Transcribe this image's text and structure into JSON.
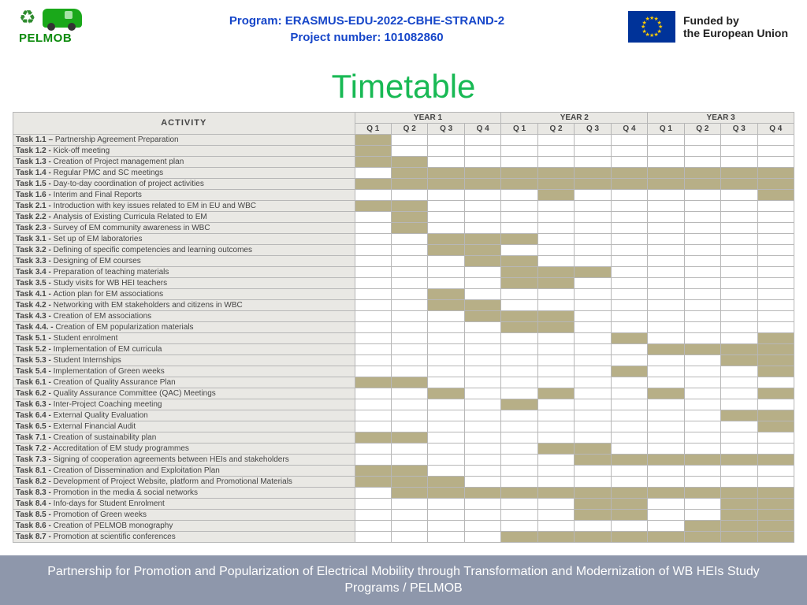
{
  "header": {
    "logo_text": "PELMOB",
    "program_line1": "Program: ERASMUS-EDU-2022-CBHE-STRAND-2",
    "program_line2": "Project number: 101082860",
    "eu_line1": "Funded by",
    "eu_line2": "the European Union"
  },
  "title": "Timetable",
  "footer": "Partnership for Promotion and Popularization of Electrical Mobility through Transformation and Modernization of WB HEIs Study Programs / PELMOB",
  "colors": {
    "title": "#18b954",
    "header_text": "#1646c9",
    "table_border": "#b7b7b7",
    "table_head_bg": "#e9e8e4",
    "fill": "#b7af87",
    "eu_flag_bg": "#003399",
    "eu_star": "#ffcc00",
    "footer_bg": "#8e97ab",
    "logo_green": "#0b8a0b"
  },
  "gantt": {
    "years": [
      "YEAR 1",
      "YEAR 2",
      "YEAR 3"
    ],
    "quarters": [
      "Q 1",
      "Q 2",
      "Q 3",
      "Q 4"
    ],
    "activity_header": "ACTIVITY",
    "rows": [
      {
        "id": "Task 1.1 –",
        "label": "Partnership Agreement Preparation",
        "q": [
          1,
          0,
          0,
          0,
          0,
          0,
          0,
          0,
          0,
          0,
          0,
          0
        ]
      },
      {
        "id": "Task 1.2 -",
        "label": "Kick-off meeting",
        "q": [
          1,
          0,
          0,
          0,
          0,
          0,
          0,
          0,
          0,
          0,
          0,
          0
        ]
      },
      {
        "id": "Task 1.3 -",
        "label": "Creation of Project management plan",
        "q": [
          1,
          1,
          0,
          0,
          0,
          0,
          0,
          0,
          0,
          0,
          0,
          0
        ]
      },
      {
        "id": "Task 1.4 -",
        "label": "Regular PMC and SC meetings",
        "q": [
          0,
          1,
          1,
          1,
          1,
          1,
          1,
          1,
          1,
          1,
          1,
          1
        ]
      },
      {
        "id": "Task 1.5 -",
        "label": "Day-to-day coordination of project activities",
        "q": [
          1,
          1,
          1,
          1,
          1,
          1,
          1,
          1,
          1,
          1,
          1,
          1
        ]
      },
      {
        "id": "Task 1.6 -",
        "label": "Interim and Final Reports",
        "q": [
          0,
          0,
          0,
          0,
          0,
          1,
          0,
          0,
          0,
          0,
          0,
          1
        ]
      },
      {
        "id": "Task 2.1 -",
        "label": "Introduction with key issues related to EM in EU and WBC",
        "q": [
          1,
          1,
          0,
          0,
          0,
          0,
          0,
          0,
          0,
          0,
          0,
          0
        ]
      },
      {
        "id": "Task 2.2 -",
        "label": "Analysis of Existing Curricula Related to EM",
        "q": [
          0,
          1,
          0,
          0,
          0,
          0,
          0,
          0,
          0,
          0,
          0,
          0
        ]
      },
      {
        "id": "Task 2.3 -",
        "label": "Survey of EM community awareness in WBC",
        "q": [
          0,
          1,
          0,
          0,
          0,
          0,
          0,
          0,
          0,
          0,
          0,
          0
        ]
      },
      {
        "id": "Task 3.1 -",
        "label": "Set up of EM laboratories",
        "q": [
          0,
          0,
          1,
          1,
          1,
          0,
          0,
          0,
          0,
          0,
          0,
          0
        ]
      },
      {
        "id": "Task 3.2 -",
        "label": "Defining of specific competencies and learning outcomes",
        "q": [
          0,
          0,
          1,
          1,
          0,
          0,
          0,
          0,
          0,
          0,
          0,
          0
        ]
      },
      {
        "id": "Task 3.3 -",
        "label": "Designing of EM courses",
        "q": [
          0,
          0,
          0,
          1,
          1,
          0,
          0,
          0,
          0,
          0,
          0,
          0
        ]
      },
      {
        "id": "Task 3.4 -",
        "label": "Preparation of teaching materials",
        "q": [
          0,
          0,
          0,
          0,
          1,
          1,
          1,
          0,
          0,
          0,
          0,
          0
        ]
      },
      {
        "id": "Task 3.5 -",
        "label": "Study visits for WB HEI teachers",
        "q": [
          0,
          0,
          0,
          0,
          1,
          1,
          0,
          0,
          0,
          0,
          0,
          0
        ]
      },
      {
        "id": "Task 4.1 -",
        "label": "Action plan for EM associations",
        "q": [
          0,
          0,
          1,
          0,
          0,
          0,
          0,
          0,
          0,
          0,
          0,
          0
        ]
      },
      {
        "id": "Task 4.2 -",
        "label": "Networking with EM stakeholders and citizens in WBC",
        "q": [
          0,
          0,
          1,
          1,
          0,
          0,
          0,
          0,
          0,
          0,
          0,
          0
        ]
      },
      {
        "id": "Task 4.3 -",
        "label": "Creation of EM associations",
        "q": [
          0,
          0,
          0,
          1,
          1,
          1,
          0,
          0,
          0,
          0,
          0,
          0
        ]
      },
      {
        "id": "Task 4.4. -",
        "label": "Creation of EM popularization materials",
        "q": [
          0,
          0,
          0,
          0,
          1,
          1,
          0,
          0,
          0,
          0,
          0,
          0
        ]
      },
      {
        "id": "Task 5.1 -",
        "label": "Student enrolment",
        "q": [
          0,
          0,
          0,
          0,
          0,
          0,
          0,
          1,
          0,
          0,
          0,
          1
        ]
      },
      {
        "id": "Task 5.2 -",
        "label": "Implementation of EM curricula",
        "q": [
          0,
          0,
          0,
          0,
          0,
          0,
          0,
          0,
          1,
          1,
          1,
          1
        ]
      },
      {
        "id": "Task 5.3 -",
        "label": "Student Internships",
        "q": [
          0,
          0,
          0,
          0,
          0,
          0,
          0,
          0,
          0,
          0,
          1,
          1
        ]
      },
      {
        "id": "Task 5.4 -",
        "label": "Implementation of Green weeks",
        "q": [
          0,
          0,
          0,
          0,
          0,
          0,
          0,
          1,
          0,
          0,
          0,
          1
        ]
      },
      {
        "id": "Task 6.1 -",
        "label": "Creation of Quality Assurance Plan",
        "q": [
          1,
          1,
          0,
          0,
          0,
          0,
          0,
          0,
          0,
          0,
          0,
          0
        ]
      },
      {
        "id": "Task 6.2 -",
        "label": "Quality Assurance Committee (QAC) Meetings",
        "q": [
          0,
          0,
          1,
          0,
          0,
          1,
          0,
          0,
          1,
          0,
          0,
          1
        ]
      },
      {
        "id": "Task 6.3 -",
        "label": "Inter-Project Coaching meeting",
        "q": [
          0,
          0,
          0,
          0,
          1,
          0,
          0,
          0,
          0,
          0,
          0,
          0
        ]
      },
      {
        "id": "Task 6.4 -",
        "label": "External Quality Evaluation",
        "q": [
          0,
          0,
          0,
          0,
          0,
          0,
          0,
          0,
          0,
          0,
          1,
          1
        ]
      },
      {
        "id": "Task 6.5 -",
        "label": "External Financial Audit",
        "q": [
          0,
          0,
          0,
          0,
          0,
          0,
          0,
          0,
          0,
          0,
          0,
          1
        ]
      },
      {
        "id": "Task 7.1 -",
        "label": "Creation of sustainability plan",
        "q": [
          1,
          1,
          0,
          0,
          0,
          0,
          0,
          0,
          0,
          0,
          0,
          0
        ]
      },
      {
        "id": "Task 7.2 -",
        "label": "Accreditation of EM study programmes",
        "q": [
          0,
          0,
          0,
          0,
          0,
          1,
          1,
          0,
          0,
          0,
          0,
          0
        ]
      },
      {
        "id": "Task 7.3 -",
        "label": "Signing of cooperation agreements between HEIs and stakeholders",
        "q": [
          0,
          0,
          0,
          0,
          0,
          0,
          1,
          1,
          1,
          1,
          1,
          1
        ]
      },
      {
        "id": "Task 8.1 -",
        "label": "Creation of Dissemination and Exploitation Plan",
        "q": [
          1,
          1,
          0,
          0,
          0,
          0,
          0,
          0,
          0,
          0,
          0,
          0
        ]
      },
      {
        "id": "Task 8.2 -",
        "label": "Development of Project Website, platform and Promotional Materials",
        "q": [
          1,
          1,
          1,
          0,
          0,
          0,
          0,
          0,
          0,
          0,
          0,
          0
        ]
      },
      {
        "id": "Task 8.3 -",
        "label": "Promotion in the media & social networks",
        "q": [
          0,
          1,
          1,
          1,
          1,
          1,
          1,
          1,
          1,
          1,
          1,
          1
        ]
      },
      {
        "id": "Task 8.4 -",
        "label": "Info-days for Student Enrolment",
        "q": [
          0,
          0,
          0,
          0,
          0,
          0,
          1,
          1,
          0,
          0,
          1,
          1
        ]
      },
      {
        "id": "Task 8.5 -",
        "label": "Promotion of Green weeks",
        "q": [
          0,
          0,
          0,
          0,
          0,
          0,
          1,
          1,
          0,
          0,
          1,
          1
        ]
      },
      {
        "id": "Task 8.6 -",
        "label": "Creation of PELMOB monography",
        "q": [
          0,
          0,
          0,
          0,
          0,
          0,
          0,
          0,
          0,
          1,
          1,
          1
        ]
      },
      {
        "id": "Task 8.7 -",
        "label": "Promotion at scientific conferences",
        "q": [
          0,
          0,
          0,
          0,
          1,
          1,
          1,
          1,
          1,
          1,
          1,
          1
        ]
      }
    ]
  }
}
